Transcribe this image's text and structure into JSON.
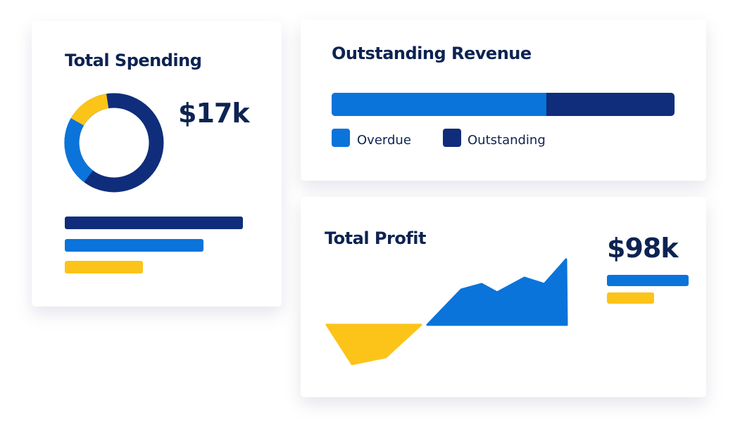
{
  "spending": {
    "title": "Total Spending",
    "amount": "$17k"
  },
  "revenue": {
    "title": "Outstanding Revenue",
    "legend": [
      "Overdue",
      "Outstanding"
    ]
  },
  "profit": {
    "title": "Total Profit",
    "amount": "$98k"
  }
}
